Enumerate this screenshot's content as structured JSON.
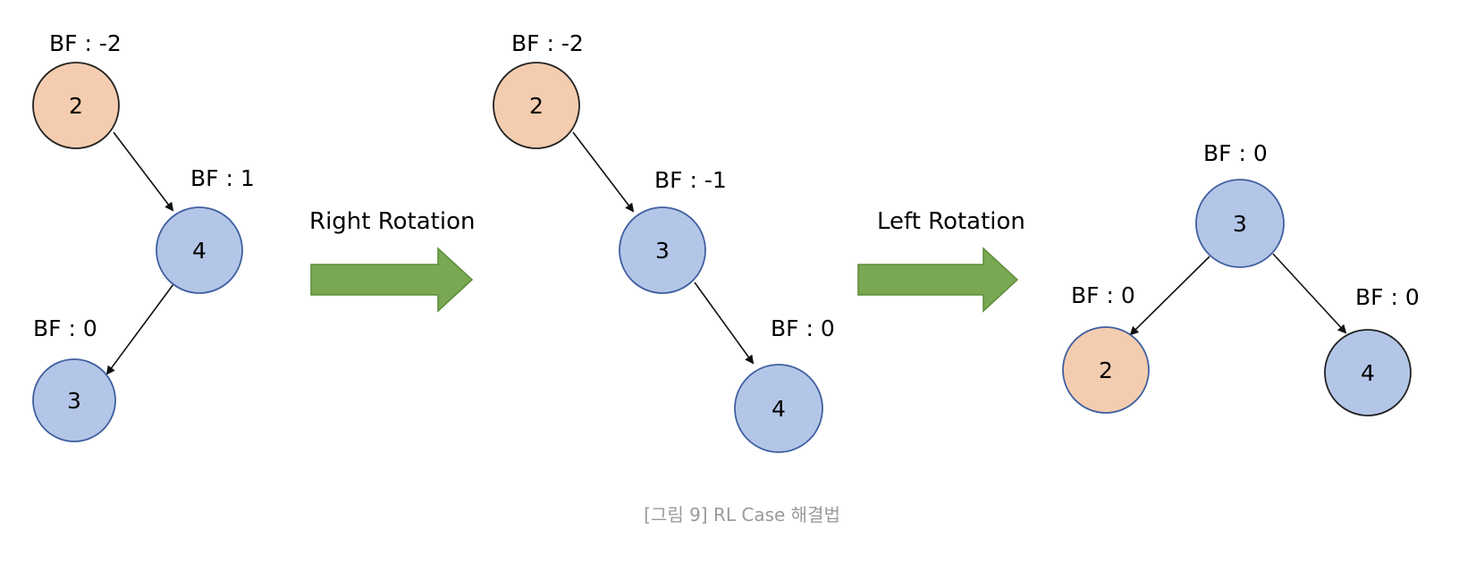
{
  "colors": {
    "node_orange": "#f4cdb0",
    "node_blue": "#b4c6e7",
    "node_border_blue": "#3f5fa0",
    "node_border_dark": "#222222",
    "arrow_green": "#7aa852",
    "arrow_green_border": "#5b8c38",
    "edge": "#111111",
    "caption_text": "#9a9a9a"
  },
  "stages": [
    {
      "nodes": [
        {
          "id": "s1-root",
          "value": "2",
          "bf": "BF : -2",
          "color": "orange"
        },
        {
          "id": "s1-mid",
          "value": "4",
          "bf": "BF : 1",
          "color": "blue"
        },
        {
          "id": "s1-leaf",
          "value": "3",
          "bf": "BF : 0",
          "color": "blue"
        }
      ]
    },
    {
      "nodes": [
        {
          "id": "s2-root",
          "value": "2",
          "bf": "BF : -2",
          "color": "orange"
        },
        {
          "id": "s2-mid",
          "value": "3",
          "bf": "BF : -1",
          "color": "blue"
        },
        {
          "id": "s2-leaf",
          "value": "4",
          "bf": "BF : 0",
          "color": "blue"
        }
      ]
    },
    {
      "nodes": [
        {
          "id": "s3-root",
          "value": "3",
          "bf": "BF : 0",
          "color": "blue"
        },
        {
          "id": "s3-left",
          "value": "2",
          "bf": "BF : 0",
          "color": "orange"
        },
        {
          "id": "s3-right",
          "value": "4",
          "bf": "BF : 0",
          "color": "blue"
        }
      ]
    }
  ],
  "transitions": [
    {
      "label": "Right Rotation"
    },
    {
      "label": "Left Rotation"
    }
  ],
  "caption": "[그림 9] RL Case 해결법"
}
